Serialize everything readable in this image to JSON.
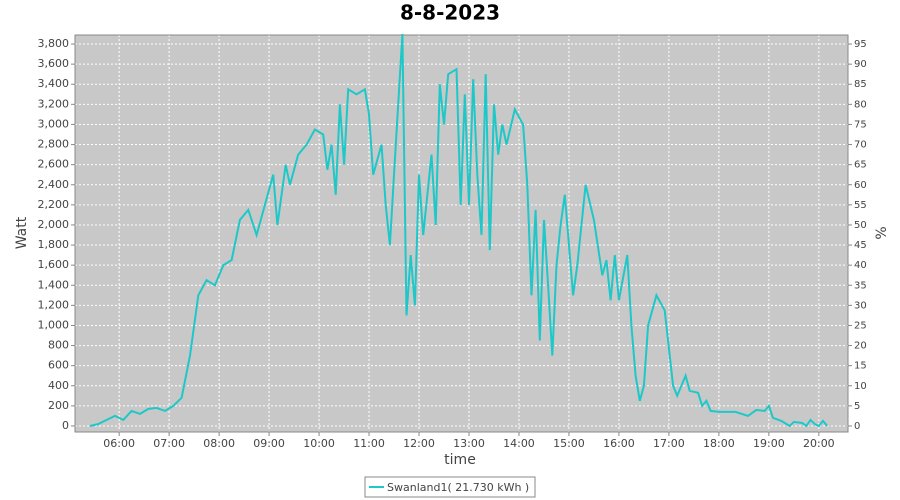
{
  "chart_data": {
    "type": "line",
    "title": "8-8-2023",
    "x_label": "time",
    "y_label": "Watt",
    "y2_label": "%",
    "x": [
      "05:25",
      "05:35",
      "05:45",
      "05:55",
      "06:05",
      "06:15",
      "06:25",
      "06:35",
      "06:45",
      "06:55",
      "07:05",
      "07:15",
      "07:25",
      "07:35",
      "07:45",
      "07:55",
      "08:05",
      "08:15",
      "08:25",
      "08:35",
      "08:45",
      "08:55",
      "09:05",
      "09:10",
      "09:20",
      "09:25",
      "09:35",
      "09:45",
      "09:55",
      "10:05",
      "10:10",
      "10:15",
      "10:20",
      "10:25",
      "10:30",
      "10:35",
      "10:45",
      "10:55",
      "11:00",
      "11:05",
      "11:15",
      "11:20",
      "11:25",
      "11:30",
      "11:40",
      "11:45",
      "11:50",
      "11:55",
      "12:00",
      "12:05",
      "12:15",
      "12:20",
      "12:25",
      "12:30",
      "12:35",
      "12:45",
      "12:50",
      "12:55",
      "13:00",
      "13:05",
      "13:10",
      "13:15",
      "13:20",
      "13:25",
      "13:30",
      "13:35",
      "13:40",
      "13:45",
      "13:55",
      "14:05",
      "14:10",
      "14:15",
      "14:20",
      "14:25",
      "14:30",
      "14:35",
      "14:40",
      "14:45",
      "14:50",
      "14:55",
      "15:05",
      "15:10",
      "15:20",
      "15:30",
      "15:40",
      "15:45",
      "15:50",
      "15:55",
      "16:00",
      "16:10",
      "16:15",
      "16:20",
      "16:25",
      "16:30",
      "16:35",
      "16:45",
      "16:55",
      "17:05",
      "17:10",
      "17:20",
      "17:25",
      "17:35",
      "17:40",
      "17:45",
      "17:50",
      "18:00",
      "18:20",
      "18:35",
      "18:45",
      "18:55",
      "19:00",
      "19:05",
      "19:15",
      "19:25",
      "19:30",
      "19:40",
      "19:45",
      "19:50",
      "19:55",
      "20:00",
      "20:05",
      "20:10"
    ],
    "series": [
      {
        "name": "Swanland1( 21.730 kWh )",
        "color": "#1ec8c8",
        "values": [
          0,
          20,
          60,
          100,
          60,
          150,
          120,
          170,
          180,
          150,
          200,
          280,
          700,
          1300,
          1450,
          1400,
          1600,
          1650,
          2050,
          2150,
          1900,
          2200,
          2500,
          2000,
          2600,
          2400,
          2700,
          2800,
          2950,
          2900,
          2550,
          2800,
          2300,
          3200,
          2600,
          3350,
          3300,
          3350,
          3100,
          2500,
          2800,
          2200,
          1800,
          2500,
          3900,
          1100,
          1700,
          1200,
          2500,
          1900,
          2700,
          2000,
          3400,
          3000,
          3500,
          3550,
          2200,
          3300,
          2200,
          3450,
          2500,
          1900,
          3500,
          1750,
          3200,
          2700,
          3000,
          2800,
          3150,
          3000,
          2400,
          1300,
          2150,
          850,
          2050,
          1400,
          700,
          1600,
          2000,
          2300,
          1300,
          1600,
          2400,
          2050,
          1500,
          1650,
          1250,
          1700,
          1250,
          1700,
          1000,
          500,
          250,
          400,
          1000,
          1300,
          1150,
          400,
          300,
          500,
          350,
          330,
          200,
          250,
          150,
          140,
          140,
          100,
          160,
          150,
          200,
          80,
          50,
          0,
          40,
          30,
          0,
          60,
          20,
          0,
          50,
          0
        ]
      }
    ],
    "xlim": [
      "05:07",
      "20:35"
    ],
    "ylim": [
      -60,
      3890
    ],
    "y2lim": [
      -1.5,
      97.25
    ],
    "xticks": [
      "06:00",
      "07:00",
      "08:00",
      "09:00",
      "10:00",
      "11:00",
      "12:00",
      "13:00",
      "14:00",
      "15:00",
      "16:00",
      "17:00",
      "18:00",
      "19:00",
      "20:00"
    ],
    "yticks": [
      0,
      200,
      400,
      600,
      800,
      {
        "value": 1000,
        "label": "1,000"
      },
      {
        "value": 1200,
        "label": "1,200"
      },
      {
        "value": 1400,
        "label": "1,400"
      },
      {
        "value": 1600,
        "label": "1,600"
      },
      {
        "value": 1800,
        "label": "1,800"
      },
      {
        "value": 2000,
        "label": "2,000"
      },
      {
        "value": 2200,
        "label": "2,200"
      },
      {
        "value": 2400,
        "label": "2,400"
      },
      {
        "value": 2600,
        "label": "2,600"
      },
      {
        "value": 2800,
        "label": "2,800"
      },
      {
        "value": 3000,
        "label": "3,000"
      },
      {
        "value": 3200,
        "label": "3,200"
      },
      {
        "value": 3400,
        "label": "3,400"
      },
      {
        "value": 3600,
        "label": "3,600"
      },
      {
        "value": 3800,
        "label": "3,800"
      }
    ],
    "y2ticks": [
      0,
      5,
      10,
      15,
      20,
      25,
      30,
      35,
      40,
      45,
      50,
      55,
      60,
      65,
      70,
      75,
      80,
      85,
      90,
      95
    ],
    "grid": true,
    "legend": "bottom"
  }
}
